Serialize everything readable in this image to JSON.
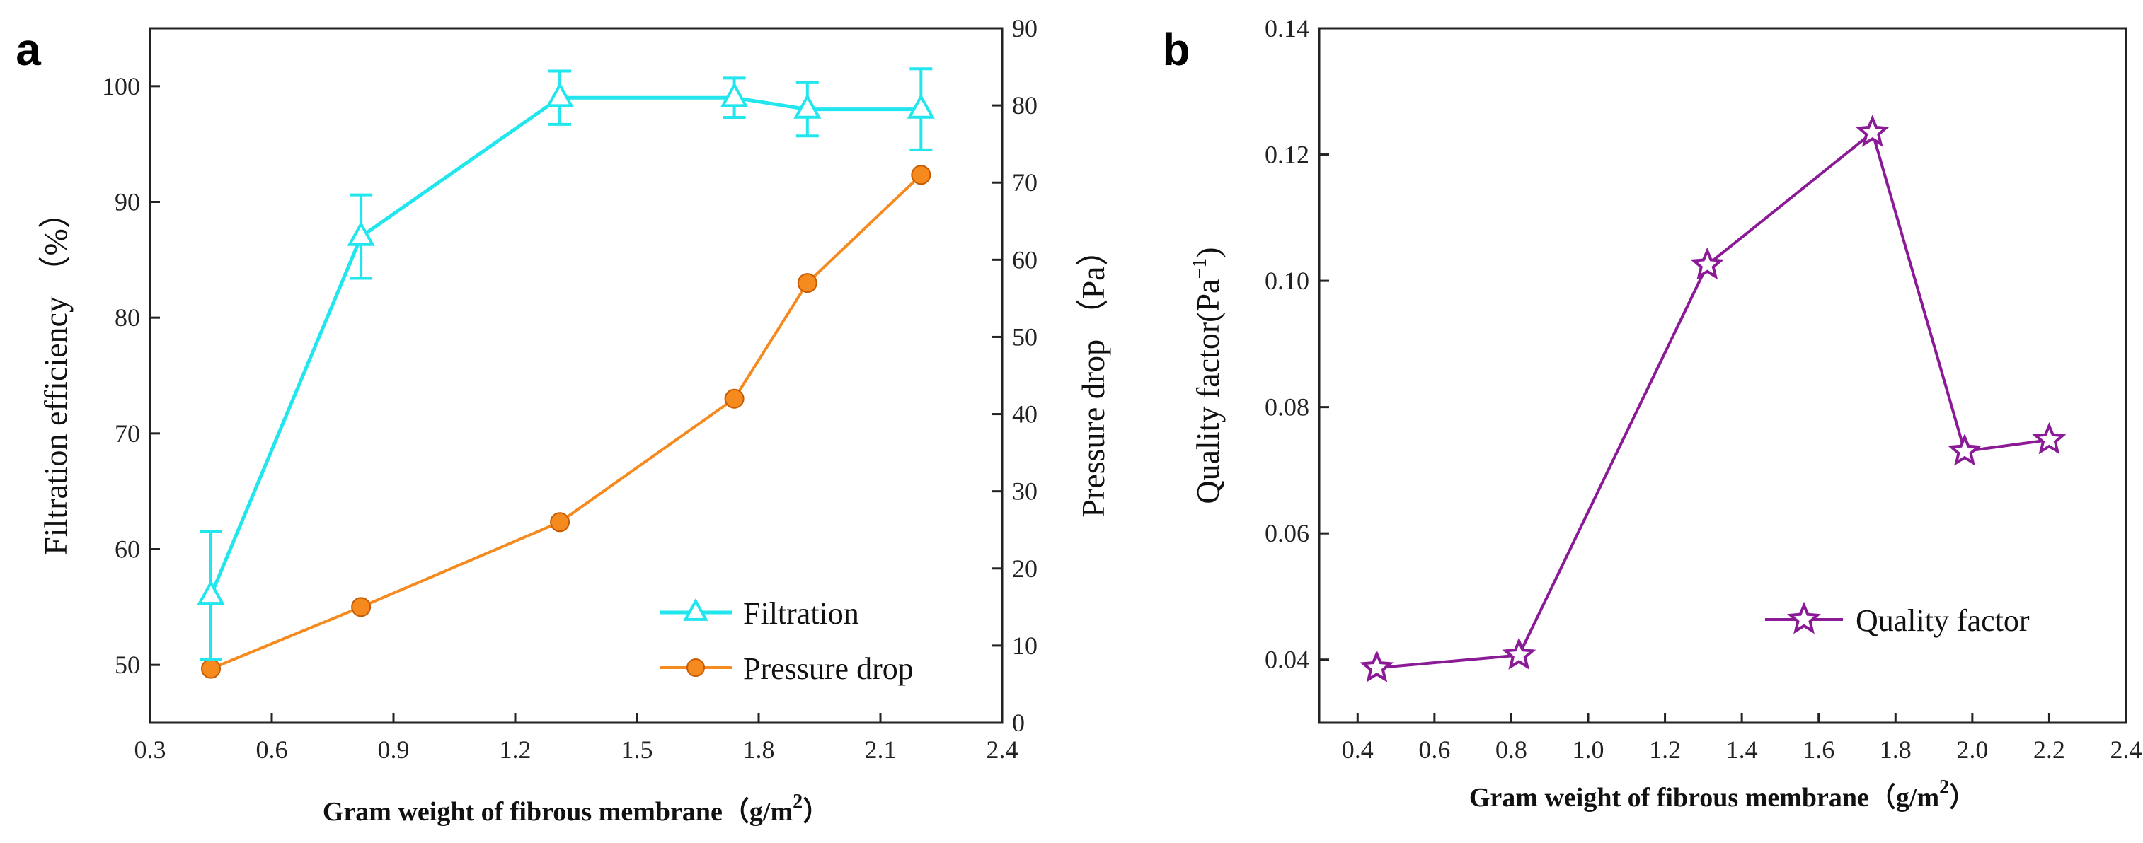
{
  "chart_data": [
    {
      "type": "line",
      "panel_label": "a",
      "xlabel_main": "Gram weight of fibrous membrane",
      "xlabel_unit": "（g/m",
      "xlabel_sup": "2",
      "xlabel_close": "）",
      "ylabel": "Filtration efficiency （%）",
      "y2label": "Pressure drop （Pa）",
      "xlim": [
        0.3,
        2.4
      ],
      "ylim": [
        45,
        105
      ],
      "y2lim": [
        0,
        90
      ],
      "xticks": [
        0.3,
        0.6,
        0.9,
        1.2,
        1.5,
        1.8,
        2.1,
        2.4
      ],
      "xtick_labels": [
        "0.3",
        "0.6",
        "0.9",
        "1.2",
        "1.5",
        "1.8",
        "2.1",
        "2.4"
      ],
      "yticks": [
        50,
        60,
        70,
        80,
        90,
        100
      ],
      "ytick_labels": [
        "50",
        "60",
        "70",
        "80",
        "90",
        "100"
      ],
      "y2ticks": [
        0,
        10,
        20,
        30,
        40,
        50,
        60,
        70,
        80,
        90
      ],
      "y2tick_labels": [
        "0",
        "10",
        "20",
        "30",
        "40",
        "50",
        "60",
        "70",
        "80",
        "90"
      ],
      "series": [
        {
          "name": "Filtration",
          "axis": "left",
          "color": "#22e6ee",
          "marker": "triangle",
          "x": [
            0.45,
            0.82,
            1.31,
            1.74,
            1.92,
            2.2
          ],
          "y": [
            56,
            87,
            99,
            99,
            98,
            98
          ],
          "err": [
            5.5,
            3.6,
            2.3,
            1.7,
            2.3,
            3.5
          ]
        },
        {
          "name": "Pressure drop",
          "axis": "right",
          "color": "#f58a1f",
          "marker": "circle",
          "x": [
            0.45,
            0.82,
            1.31,
            1.74,
            1.92,
            2.2
          ],
          "y": [
            7,
            15,
            26,
            42,
            57,
            71
          ]
        }
      ],
      "legend_position": "bottom-right"
    },
    {
      "type": "line",
      "panel_label": "b",
      "xlabel_main": "Gram weight of fibrous membrane",
      "xlabel_unit": "（g/m",
      "xlabel_sup": "2",
      "xlabel_close": "）",
      "ylabel_main": "Quality factor(Pa",
      "ylabel_sup": "−1",
      "ylabel_close": ")",
      "xlim": [
        0.3,
        2.4
      ],
      "ylim": [
        0.03,
        0.14
      ],
      "xticks": [
        0.4,
        0.6,
        0.8,
        1.0,
        1.2,
        1.4,
        1.6,
        1.8,
        2.0,
        2.2,
        2.4
      ],
      "xtick_labels": [
        "0.4",
        "0.6",
        "0.8",
        "1.0",
        "1.2",
        "1.4",
        "1.6",
        "1.8",
        "2.0",
        "2.2",
        "2.4"
      ],
      "yticks": [
        0.04,
        0.06,
        0.08,
        0.1,
        0.12,
        0.14
      ],
      "ytick_labels": [
        "0.04",
        "0.06",
        "0.08",
        "0.10",
        "0.12",
        "0.14"
      ],
      "series": [
        {
          "name": "Quality factor",
          "color": "#8b1a96",
          "marker": "star",
          "x": [
            0.45,
            0.82,
            1.31,
            1.74,
            1.98,
            2.2
          ],
          "y": [
            0.0387,
            0.0407,
            0.1025,
            0.1235,
            0.073,
            0.0748
          ]
        }
      ],
      "legend_position": "bottom-right"
    }
  ]
}
